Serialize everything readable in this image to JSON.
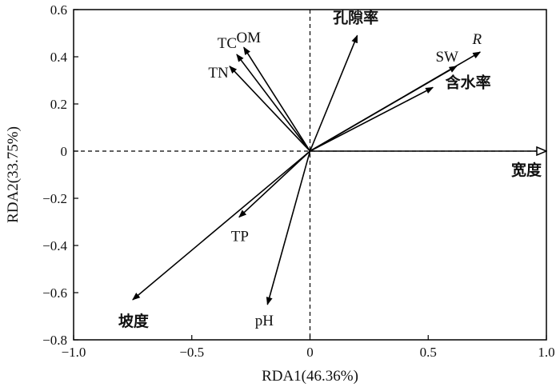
{
  "chart_data": {
    "type": "scatter",
    "subtype": "rda-biplot",
    "title": "",
    "xlabel": "RDA1(46.36%)",
    "ylabel": "RDA2(33.75%)",
    "xlim": [
      -1.0,
      1.0
    ],
    "ylim": [
      -0.8,
      0.6
    ],
    "x_ticks": [
      -1.0,
      -0.5,
      0,
      0.5,
      1.0
    ],
    "x_tick_labels": [
      "−1.0",
      "−0.5",
      "0",
      "0.5",
      "1.0"
    ],
    "y_ticks": [
      -0.8,
      -0.6,
      -0.4,
      -0.2,
      0,
      0.2,
      0.4,
      0.6
    ],
    "y_tick_labels": [
      "−0.8",
      "−0.6",
      "−0.4",
      "−0.2",
      "0",
      "0.2",
      "0.4",
      "0.6"
    ],
    "grid": false,
    "reference_lines": "dashed lines at x=0 and y=0",
    "response_vector": {
      "label": "宽度",
      "x": 1.0,
      "y": 0.0,
      "arrow": "hollow"
    },
    "vectors": [
      {
        "label": "OM",
        "x": -0.28,
        "y": 0.44
      },
      {
        "label": "TC",
        "x": -0.31,
        "y": 0.41
      },
      {
        "label": "TN",
        "x": -0.34,
        "y": 0.36
      },
      {
        "label": "孔隙率",
        "x": 0.2,
        "y": 0.49
      },
      {
        "label": "SW",
        "x": 0.62,
        "y": 0.36
      },
      {
        "label": "R",
        "x": 0.72,
        "y": 0.42,
        "italic": true
      },
      {
        "label": "含水率",
        "x": 0.52,
        "y": 0.27
      },
      {
        "label": "TP",
        "x": -0.3,
        "y": -0.28
      },
      {
        "label": "坡度",
        "x": -0.75,
        "y": -0.63
      },
      {
        "label": "pH",
        "x": -0.18,
        "y": -0.65
      }
    ],
    "colors": {
      "axis": "#000000",
      "vector": "#000000"
    }
  }
}
